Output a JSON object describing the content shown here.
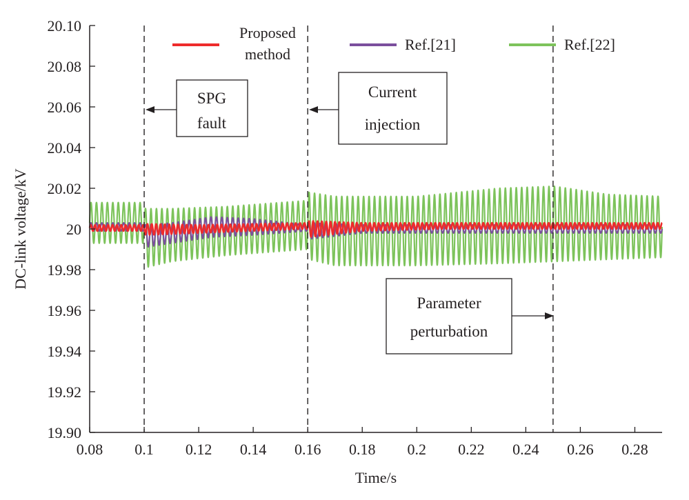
{
  "chart_data": {
    "type": "line",
    "xlabel": "Time/s",
    "ylabel": "DC-link voltage/kV",
    "xlim": [
      0.08,
      0.29
    ],
    "ylim": [
      19.9,
      20.1
    ],
    "xticks": [
      "0.08",
      "0.1",
      "0.12",
      "0.14",
      "0.16",
      "0.18",
      "0.2",
      "0.22",
      "0.24",
      "0.26",
      "0.28"
    ],
    "yticks": [
      "20.10",
      "20.08",
      "20.06",
      "20.04",
      "20.02",
      "20",
      "19.98",
      "19.96",
      "19.94",
      "19.92",
      "19.90"
    ],
    "grid": false,
    "legend_position": "top",
    "series": [
      {
        "name": "Ref.[22]",
        "color": "#7dc35b",
        "oscillation_envelope": {
          "t": [
            0.08,
            0.1,
            0.1005,
            0.11,
            0.13,
            0.16,
            0.1605,
            0.17,
            0.2,
            0.23,
            0.25,
            0.2505,
            0.27,
            0.29
          ],
          "upper": [
            20.013,
            20.013,
            20.01,
            20.01,
            20.011,
            20.014,
            20.018,
            20.016,
            20.016,
            20.02,
            20.021,
            20.021,
            20.017,
            20.016
          ],
          "lower": [
            19.993,
            19.993,
            19.981,
            19.984,
            19.987,
            19.99,
            19.985,
            19.982,
            19.982,
            19.983,
            19.984,
            19.984,
            19.985,
            19.986
          ]
        }
      },
      {
        "name": "Ref.[21]",
        "color": "#7b4f9d",
        "oscillation_envelope": {
          "t": [
            0.08,
            0.1,
            0.1005,
            0.11,
            0.125,
            0.14,
            0.16,
            0.1605,
            0.18,
            0.2,
            0.23,
            0.25,
            0.27,
            0.29
          ],
          "upper": [
            20.003,
            20.003,
            20.002,
            20.003,
            20.006,
            20.005,
            20.002,
            20.003,
            20.002,
            20.002,
            20.002,
            20.002,
            20.002,
            20.002
          ],
          "lower": [
            19.999,
            19.999,
            19.991,
            19.993,
            19.996,
            19.997,
            19.999,
            19.995,
            19.998,
            19.998,
            19.998,
            19.998,
            19.998,
            19.998
          ]
        }
      },
      {
        "name": "Proposed method",
        "color": "#ee2b2b",
        "oscillation_envelope": {
          "t": [
            0.08,
            0.1,
            0.1005,
            0.12,
            0.16,
            0.1605,
            0.18,
            0.21,
            0.25,
            0.29
          ],
          "upper": [
            20.002,
            20.002,
            20.0025,
            20.002,
            20.003,
            20.004,
            20.003,
            20.003,
            20.003,
            20.003
          ],
          "lower": [
            19.999,
            19.999,
            19.997,
            19.998,
            20.0,
            19.996,
            19.999,
            20.0,
            20.0,
            20.0
          ]
        }
      }
    ],
    "event_lines": [
      {
        "x": 0.1,
        "label_lines": [
          "SPG",
          "fault"
        ]
      },
      {
        "x": 0.16,
        "label_lines": [
          "Current",
          "injection"
        ]
      },
      {
        "x": 0.25,
        "label_lines": [
          "Parameter",
          "perturbation"
        ]
      }
    ]
  },
  "legend": {
    "proposed_line1": "Proposed",
    "proposed_line2": "method",
    "ref21": "Ref.[21]",
    "ref22": "Ref.[22]"
  },
  "colors": {
    "axis": "#231f20",
    "background": "#ffffff"
  }
}
